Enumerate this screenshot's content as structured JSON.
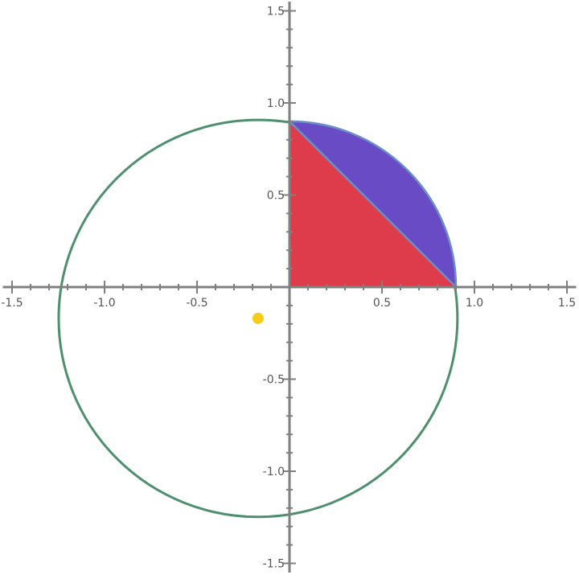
{
  "chart_data": {
    "type": "scatter",
    "title": "",
    "xlabel": "",
    "ylabel": "",
    "xlim": [
      -1.55,
      1.55
    ],
    "ylim": [
      -1.55,
      1.55
    ],
    "grid": false,
    "x_ticks": [
      -1.5,
      -1.0,
      -0.5,
      0.5,
      1.0,
      1.5
    ],
    "x_tick_labels": [
      "-1.5",
      "-1.0",
      "-0.5",
      "0.5",
      "1.0",
      "1.5"
    ],
    "y_ticks": [
      1.5,
      1.0,
      0.5,
      -0.5,
      -1.0,
      -1.5
    ],
    "y_tick_labels": [
      "1.5",
      "1.0",
      "0.5",
      "-0.5",
      "-1.0",
      "-1.5"
    ],
    "circle": {
      "center": [
        -0.17,
        -0.17
      ],
      "radius": 1.078,
      "color": "#4e8f6e"
    },
    "segment_region": {
      "points": [
        [
          0.9,
          0
        ],
        [
          0,
          0.9
        ]
      ],
      "arc_center": [
        0,
        0
      ],
      "arc_radius": 0.9,
      "color": "#6a4bc6",
      "edge_color": "#6b8fc4"
    },
    "triangle": {
      "points": [
        [
          0,
          0
        ],
        [
          0.9,
          0
        ],
        [
          0,
          0.9
        ]
      ],
      "color": "#de3c4b",
      "edge_color": "#6b8fc4"
    },
    "point": {
      "x": -0.17,
      "y": -0.17,
      "color": "#f5cc18"
    }
  }
}
